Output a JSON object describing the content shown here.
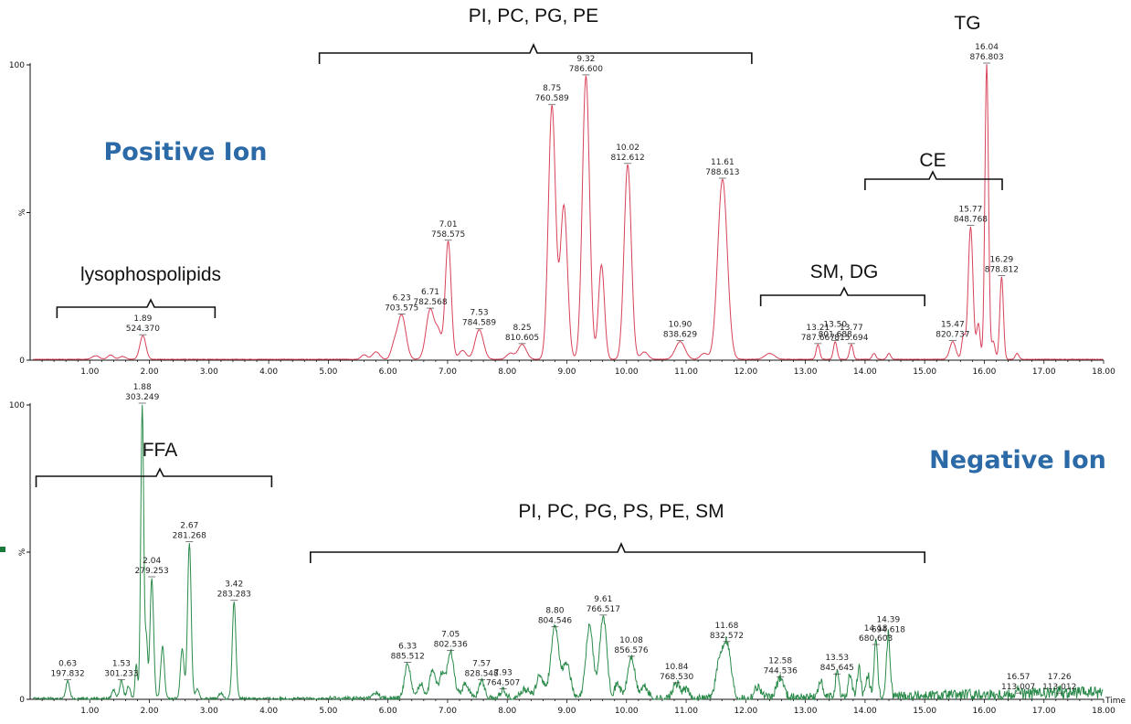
{
  "chart_data": [
    {
      "type": "line",
      "title": "Positive Ion",
      "color": "#d9425a",
      "xlabel": "",
      "xlim": [
        0,
        18
      ],
      "ylim": [
        0,
        100
      ],
      "y_ticks": [
        "100",
        "%",
        "0"
      ],
      "x_ticks": [
        "1.00",
        "2.00",
        "3.00",
        "4.00",
        "5.00",
        "6.00",
        "7.00",
        "8.00",
        "9.00",
        "10.00",
        "11.00",
        "12.00",
        "13.00",
        "14.00",
        "15.00",
        "16.00",
        "17.00",
        "18.00"
      ],
      "peaks": [
        {
          "t": 1.89,
          "h": 8,
          "w": 0.05,
          "rt": "1.89",
          "mz": "524.370"
        },
        {
          "t": 6.23,
          "h": 15,
          "w": 0.07,
          "rt": "6.23",
          "mz": "703.575"
        },
        {
          "t": 6.71,
          "h": 17,
          "w": 0.07,
          "rt": "6.71",
          "mz": "782.568"
        },
        {
          "t": 7.01,
          "h": 40,
          "w": 0.05,
          "rt": "7.01",
          "mz": "758.575"
        },
        {
          "t": 7.53,
          "h": 10,
          "w": 0.07,
          "rt": "7.53",
          "mz": "784.589"
        },
        {
          "t": 8.25,
          "h": 5,
          "w": 0.07,
          "rt": "8.25",
          "mz": "810.605"
        },
        {
          "t": 8.75,
          "h": 86,
          "w": 0.06,
          "rt": "8.75",
          "mz": "760.589"
        },
        {
          "t": 9.32,
          "h": 96,
          "w": 0.06,
          "rt": "9.32",
          "mz": "786.600"
        },
        {
          "t": 10.02,
          "h": 66,
          "w": 0.06,
          "rt": "10.02",
          "mz": "812.612"
        },
        {
          "t": 10.9,
          "h": 6,
          "w": 0.08,
          "rt": "10.90",
          "mz": "838.629"
        },
        {
          "t": 11.61,
          "h": 61,
          "w": 0.08,
          "rt": "11.61",
          "mz": "788.613"
        },
        {
          "t": 13.21,
          "h": 5,
          "w": 0.03,
          "rt": "13.21",
          "mz": "787.667"
        },
        {
          "t": 13.5,
          "h": 6,
          "w": 0.03,
          "rt": "13.50",
          "mz": "801.688"
        },
        {
          "t": 13.77,
          "h": 5,
          "w": 0.03,
          "rt": "13.77",
          "mz": "815.694"
        },
        {
          "t": 15.47,
          "h": 6,
          "w": 0.05,
          "rt": "15.47",
          "mz": "820.737"
        },
        {
          "t": 15.77,
          "h": 45,
          "w": 0.04,
          "rt": "15.77",
          "mz": "848.768"
        },
        {
          "t": 16.04,
          "h": 100,
          "w": 0.03,
          "rt": "16.04",
          "mz": "876.803"
        },
        {
          "t": 16.29,
          "h": 28,
          "w": 0.03,
          "rt": "16.29",
          "mz": "878.812"
        }
      ],
      "extra_peaks": [
        {
          "t": 1.1,
          "h": 1.2,
          "w": 0.06
        },
        {
          "t": 1.35,
          "h": 1.5,
          "w": 0.05
        },
        {
          "t": 1.55,
          "h": 1,
          "w": 0.05
        },
        {
          "t": 5.6,
          "h": 1.5,
          "w": 0.05
        },
        {
          "t": 5.8,
          "h": 2.5,
          "w": 0.06
        },
        {
          "t": 6.1,
          "h": 4,
          "w": 0.05
        },
        {
          "t": 6.85,
          "h": 8,
          "w": 0.05
        },
        {
          "t": 7.25,
          "h": 3,
          "w": 0.06
        },
        {
          "t": 8.05,
          "h": 2,
          "w": 0.06
        },
        {
          "t": 8.95,
          "h": 52,
          "w": 0.06
        },
        {
          "t": 9.58,
          "h": 32,
          "w": 0.05
        },
        {
          "t": 10.3,
          "h": 2.5,
          "w": 0.06
        },
        {
          "t": 11.3,
          "h": 2,
          "w": 0.06
        },
        {
          "t": 12.4,
          "h": 2,
          "w": 0.08
        },
        {
          "t": 14.15,
          "h": 2,
          "w": 0.03
        },
        {
          "t": 14.4,
          "h": 2,
          "w": 0.03
        },
        {
          "t": 15.65,
          "h": 8,
          "w": 0.03
        },
        {
          "t": 15.9,
          "h": 12,
          "w": 0.03
        },
        {
          "t": 16.15,
          "h": 6,
          "w": 0.03
        },
        {
          "t": 16.55,
          "h": 2,
          "w": 0.03
        }
      ],
      "groups": [
        {
          "label": "lysophospolipids",
          "x1": 0.45,
          "x2": 3.1
        },
        {
          "label": "PI, PC, PG, PE",
          "x1": 4.85,
          "x2": 12.1
        },
        {
          "label": "SM, DG",
          "x1": 12.25,
          "x2": 15.0
        },
        {
          "label": "CE",
          "x1": 14.0,
          "x2": 16.3
        },
        {
          "label": "TG",
          "x1": 16.04,
          "x2": 16.04
        }
      ]
    },
    {
      "type": "line",
      "title": "Negative Ion",
      "color": "#2a8a4a",
      "xlabel": "Time",
      "xlim": [
        0,
        18
      ],
      "ylim": [
        0,
        100
      ],
      "y_ticks": [
        "100",
        "%",
        "0"
      ],
      "x_ticks": [
        "1.00",
        "2.00",
        "3.00",
        "4.00",
        "5.00",
        "6.00",
        "7.00",
        "8.00",
        "9.00",
        "10.00",
        "11.00",
        "12.00",
        "13.00",
        "14.00",
        "15.00",
        "16.00",
        "17.00",
        "18.00"
      ],
      "peaks": [
        {
          "t": 0.63,
          "h": 6,
          "w": 0.03,
          "rt": "0.63",
          "mz": "197.832"
        },
        {
          "t": 1.53,
          "h": 6,
          "w": 0.03,
          "rt": "1.53",
          "mz": "301.233"
        },
        {
          "t": 1.88,
          "h": 100,
          "w": 0.025,
          "rt": "1.88",
          "mz": "303.249"
        },
        {
          "t": 2.04,
          "h": 41,
          "w": 0.03,
          "rt": "2.04",
          "mz": "279.253"
        },
        {
          "t": 2.67,
          "h": 53,
          "w": 0.03,
          "rt": "2.67",
          "mz": "281.268"
        },
        {
          "t": 3.42,
          "h": 33,
          "w": 0.03,
          "rt": "3.42",
          "mz": "283.283"
        },
        {
          "t": 6.33,
          "h": 12,
          "w": 0.05,
          "rt": "6.33",
          "mz": "885.512"
        },
        {
          "t": 7.05,
          "h": 16,
          "w": 0.06,
          "rt": "7.05",
          "mz": "802.536"
        },
        {
          "t": 7.57,
          "h": 6,
          "w": 0.05,
          "rt": "7.57",
          "mz": "828.548"
        },
        {
          "t": 7.93,
          "h": 3,
          "w": 0.05,
          "rt": "7.93",
          "mz": "764.507"
        },
        {
          "t": 8.8,
          "h": 24,
          "w": 0.07,
          "rt": "8.80",
          "mz": "804.546"
        },
        {
          "t": 9.61,
          "h": 28,
          "w": 0.06,
          "rt": "9.61",
          "mz": "766.517"
        },
        {
          "t": 10.08,
          "h": 14,
          "w": 0.06,
          "rt": "10.08",
          "mz": "856.576"
        },
        {
          "t": 10.84,
          "h": 5,
          "w": 0.06,
          "rt": "10.84",
          "mz": "768.530"
        },
        {
          "t": 11.68,
          "h": 19,
          "w": 0.07,
          "rt": "11.68",
          "mz": "832.572"
        },
        {
          "t": 12.58,
          "h": 7,
          "w": 0.06,
          "rt": "12.58",
          "mz": "744.536"
        },
        {
          "t": 13.53,
          "h": 8,
          "w": 0.03,
          "rt": "13.53",
          "mz": "845.645"
        },
        {
          "t": 14.18,
          "h": 18,
          "w": 0.03,
          "rt": "14.18",
          "mz": "680.603"
        },
        {
          "t": 14.39,
          "h": 21,
          "w": 0.03,
          "rt": "14.39",
          "mz": "694.618"
        },
        {
          "t": 16.57,
          "h": 1.5,
          "w": 0.03,
          "rt": "16.57",
          "mz": "113.007"
        },
        {
          "t": 17.26,
          "h": 1.5,
          "w": 0.03,
          "rt": "17.26",
          "mz": "113.012"
        }
      ],
      "extra_peaks": [
        {
          "t": 1.4,
          "h": 3,
          "w": 0.03
        },
        {
          "t": 1.65,
          "h": 4,
          "w": 0.03
        },
        {
          "t": 1.78,
          "h": 12,
          "w": 0.02
        },
        {
          "t": 1.95,
          "h": 20,
          "w": 0.02
        },
        {
          "t": 2.22,
          "h": 18,
          "w": 0.03
        },
        {
          "t": 2.55,
          "h": 17,
          "w": 0.03
        },
        {
          "t": 2.8,
          "h": 3,
          "w": 0.03
        },
        {
          "t": 3.2,
          "h": 2,
          "w": 0.03
        },
        {
          "t": 5.8,
          "h": 2,
          "w": 0.05
        },
        {
          "t": 6.55,
          "h": 5,
          "w": 0.05
        },
        {
          "t": 6.75,
          "h": 10,
          "w": 0.05
        },
        {
          "t": 6.9,
          "h": 8,
          "w": 0.04
        },
        {
          "t": 7.3,
          "h": 5,
          "w": 0.06
        },
        {
          "t": 8.3,
          "h": 3,
          "w": 0.08
        },
        {
          "t": 8.55,
          "h": 8,
          "w": 0.06
        },
        {
          "t": 9.0,
          "h": 12,
          "w": 0.06
        },
        {
          "t": 9.38,
          "h": 25,
          "w": 0.06
        },
        {
          "t": 9.85,
          "h": 5,
          "w": 0.05
        },
        {
          "t": 10.3,
          "h": 4,
          "w": 0.06
        },
        {
          "t": 11.0,
          "h": 3,
          "w": 0.05
        },
        {
          "t": 11.55,
          "h": 10,
          "w": 0.06
        },
        {
          "t": 12.2,
          "h": 4,
          "w": 0.06
        },
        {
          "t": 13.25,
          "h": 6,
          "w": 0.03
        },
        {
          "t": 13.75,
          "h": 8,
          "w": 0.03
        },
        {
          "t": 13.9,
          "h": 10,
          "w": 0.03
        },
        {
          "t": 14.05,
          "h": 7,
          "w": 0.03
        }
      ],
      "groups": [
        {
          "label": "FFA",
          "x1": 0.1,
          "x2": 4.05
        },
        {
          "label": "PI, PC, PG, PS, PE, SM",
          "x1": 4.7,
          "x2": 15.0
        }
      ]
    }
  ]
}
